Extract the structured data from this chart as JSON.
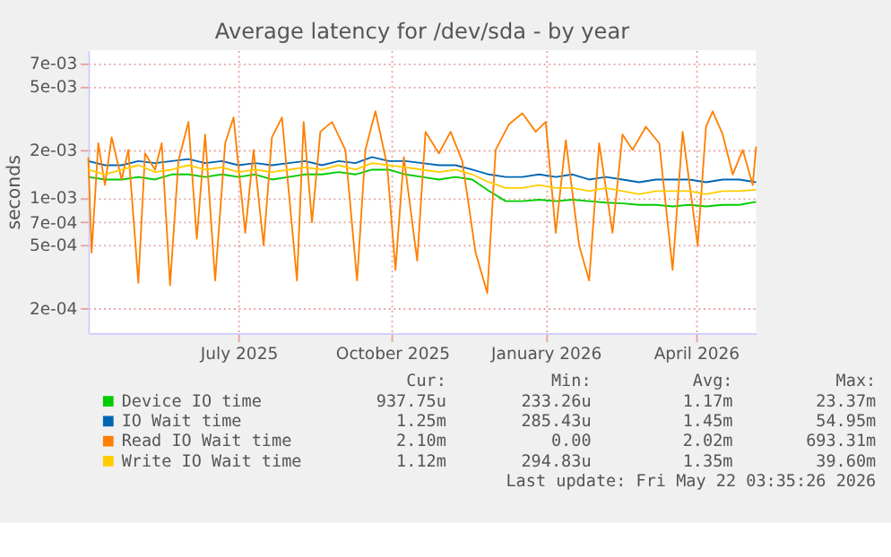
{
  "chart_data": {
    "type": "line",
    "title": "Average latency for /dev/sda - by year",
    "ylabel": "seconds",
    "log": true,
    "grid": true,
    "legend": "bottom",
    "marker": "none",
    "line_style": "solid",
    "xlim": [
      "2025-04-17",
      "2026-05-22"
    ],
    "ylim": [
      0.00014,
      0.0085
    ],
    "xticks": [
      {
        "value": "2025-07-16",
        "label": "July 2025"
      },
      {
        "value": "2025-10-16",
        "label": "October 2025"
      },
      {
        "value": "2026-01-16",
        "label": "January 2026"
      },
      {
        "value": "2026-04-16",
        "label": "April 2026"
      }
    ],
    "yticks": [
      {
        "value": 0.0002,
        "label": "2e-04"
      },
      {
        "value": 0.0005,
        "label": "5e-04"
      },
      {
        "value": 0.0007,
        "label": "7e-04"
      },
      {
        "value": 0.001,
        "label": "1e-03"
      },
      {
        "value": 0.002,
        "label": "2e-03"
      },
      {
        "value": 0.005,
        "label": "5e-03"
      },
      {
        "value": 0.007,
        "label": "7e-03"
      }
    ],
    "x": [
      "2025-04-17",
      "2025-04-27",
      "2025-05-07",
      "2025-05-17",
      "2025-05-27",
      "2025-06-06",
      "2025-06-16",
      "2025-06-26",
      "2025-07-06",
      "2025-07-16",
      "2025-07-26",
      "2025-08-05",
      "2025-08-15",
      "2025-08-25",
      "2025-09-04",
      "2025-09-14",
      "2025-09-24",
      "2025-10-04",
      "2025-10-14",
      "2025-10-24",
      "2025-11-03",
      "2025-11-13",
      "2025-11-23",
      "2025-12-03",
      "2025-12-13",
      "2025-12-23",
      "2026-01-02",
      "2026-01-12",
      "2026-01-22",
      "2026-02-01",
      "2026-02-11",
      "2026-02-21",
      "2026-03-03",
      "2026-03-13",
      "2026-03-23",
      "2026-04-02",
      "2026-04-12",
      "2026-04-22",
      "2026-05-02",
      "2026-05-12",
      "2026-05-22"
    ],
    "series": [
      {
        "name": "Device IO time",
        "color": "#00cc00",
        "values": [
          0.00135,
          0.0013,
          0.0013,
          0.00135,
          0.0013,
          0.0014,
          0.0014,
          0.00135,
          0.0014,
          0.00135,
          0.0014,
          0.0013,
          0.00135,
          0.0014,
          0.0014,
          0.00145,
          0.0014,
          0.0015,
          0.0015,
          0.0014,
          0.00135,
          0.0013,
          0.00135,
          0.0013,
          0.0011,
          0.00095,
          0.00095,
          0.00097,
          0.00095,
          0.00097,
          0.00095,
          0.00093,
          0.00092,
          0.0009,
          0.0009,
          0.00088,
          0.0009,
          0.00088,
          0.0009,
          0.0009,
          0.00094
        ]
      },
      {
        "name": "IO Wait time",
        "color": "#0066b3",
        "values": [
          0.0017,
          0.0016,
          0.0016,
          0.0017,
          0.00165,
          0.0017,
          0.00175,
          0.00165,
          0.0017,
          0.0016,
          0.00165,
          0.0016,
          0.00165,
          0.0017,
          0.0016,
          0.0017,
          0.00165,
          0.0018,
          0.0017,
          0.0017,
          0.00165,
          0.0016,
          0.0016,
          0.0015,
          0.0014,
          0.00135,
          0.00135,
          0.0014,
          0.00135,
          0.0014,
          0.0013,
          0.00135,
          0.0013,
          0.00125,
          0.0013,
          0.0013,
          0.0013,
          0.00125,
          0.0013,
          0.0013,
          0.00125
        ]
      },
      {
        "name": "Read IO Wait time",
        "color": "#ff8000",
        "x": [
          "2025-04-17",
          "2025-04-19",
          "2025-04-23",
          "2025-04-27",
          "2025-05-01",
          "2025-05-07",
          "2025-05-11",
          "2025-05-17",
          "2025-05-21",
          "2025-05-27",
          "2025-05-31",
          "2025-06-05",
          "2025-06-10",
          "2025-06-16",
          "2025-06-21",
          "2025-06-26",
          "2025-07-02",
          "2025-07-08",
          "2025-07-13",
          "2025-07-20",
          "2025-07-25",
          "2025-07-31",
          "2025-08-05",
          "2025-08-11",
          "2025-08-20",
          "2025-08-24",
          "2025-08-29",
          "2025-09-03",
          "2025-09-10",
          "2025-09-18",
          "2025-09-25",
          "2025-09-30",
          "2025-10-06",
          "2025-10-13",
          "2025-10-18",
          "2025-10-23",
          "2025-10-31",
          "2025-11-05",
          "2025-11-13",
          "2025-11-20",
          "2025-11-27",
          "2025-12-05",
          "2025-12-12",
          "2025-12-17",
          "2025-12-25",
          "2026-01-02",
          "2026-01-10",
          "2026-01-16",
          "2026-01-22",
          "2026-01-28",
          "2026-02-05",
          "2026-02-11",
          "2026-02-17",
          "2026-02-25",
          "2026-03-03",
          "2026-03-09",
          "2026-03-17",
          "2026-03-25",
          "2026-04-02",
          "2026-04-08",
          "2026-04-17",
          "2026-04-22",
          "2026-04-26",
          "2026-05-02",
          "2026-05-08",
          "2026-05-14",
          "2026-05-20",
          "2026-05-22"
        ],
        "values": [
          0.0018,
          0.00045,
          0.0022,
          0.0012,
          0.0024,
          0.0013,
          0.002,
          0.00029,
          0.0019,
          0.0015,
          0.0022,
          0.00028,
          0.0017,
          0.003,
          0.00055,
          0.0025,
          0.0003,
          0.0022,
          0.0032,
          0.0006,
          0.002,
          0.0005,
          0.0024,
          0.0032,
          0.0003,
          0.003,
          0.0007,
          0.0026,
          0.003,
          0.002,
          0.0003,
          0.002,
          0.0035,
          0.0016,
          0.00035,
          0.0018,
          0.0004,
          0.0026,
          0.0019,
          0.0026,
          0.0017,
          0.00045,
          0.00025,
          0.002,
          0.0029,
          0.0034,
          0.0026,
          0.003,
          0.0006,
          0.0023,
          0.0005,
          0.0003,
          0.0022,
          0.0006,
          0.0025,
          0.002,
          0.0028,
          0.0022,
          0.00035,
          0.0026,
          0.0005,
          0.0028,
          0.0035,
          0.0025,
          0.0014,
          0.002,
          0.0012,
          0.0021
        ]
      },
      {
        "name": "Write IO Wait time",
        "color": "#ffcc00",
        "values": [
          0.0015,
          0.0014,
          0.0015,
          0.0016,
          0.00145,
          0.0015,
          0.0016,
          0.0015,
          0.00155,
          0.00145,
          0.0015,
          0.00145,
          0.0015,
          0.00155,
          0.0015,
          0.0016,
          0.0015,
          0.00165,
          0.0016,
          0.00155,
          0.0015,
          0.00145,
          0.0015,
          0.0014,
          0.00125,
          0.00115,
          0.00115,
          0.0012,
          0.00115,
          0.00115,
          0.0011,
          0.00115,
          0.0011,
          0.00105,
          0.0011,
          0.0011,
          0.0011,
          0.00105,
          0.0011,
          0.0011,
          0.00112
        ]
      }
    ],
    "annotations": [
      "Cur:",
      "Min:",
      "Avg:",
      "Max:",
      "937.75u",
      "233.26u",
      "1.17m",
      "23.37m",
      "1.25m",
      "285.43u",
      "1.45m",
      "54.95m",
      "2.10m",
      "0.00",
      "2.02m",
      "693.31m",
      "1.12m",
      "294.83u",
      "1.35m",
      "39.60m",
      "Last update: Fri May 22 03:35:26 2026"
    ]
  }
}
